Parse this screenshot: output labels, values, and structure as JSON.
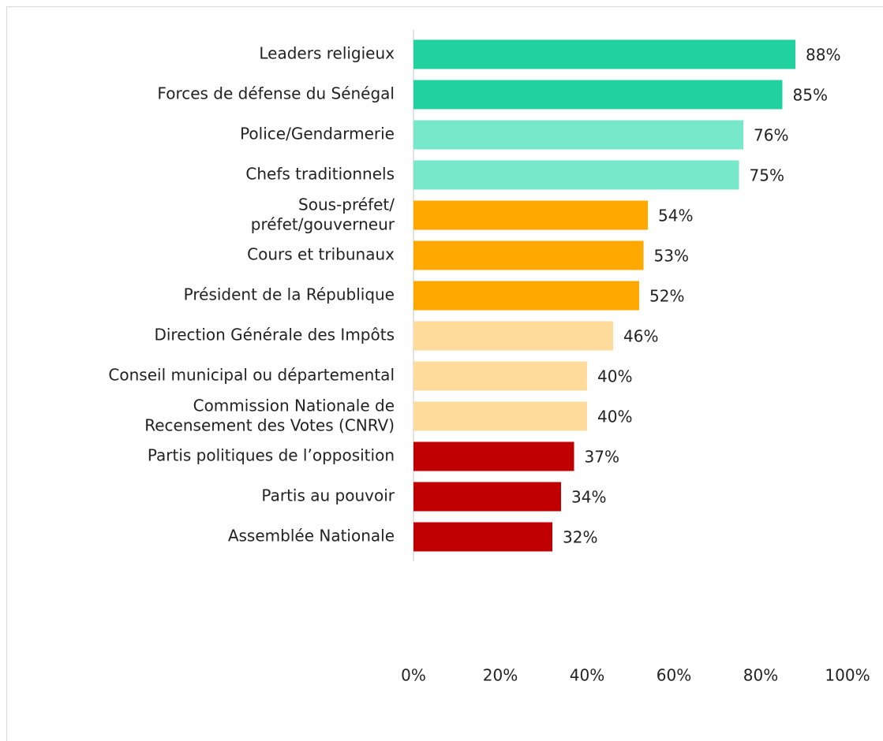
{
  "chart_data": {
    "type": "hbar",
    "categories": [
      "Leaders religieux",
      "Forces de défense du Sénégal",
      "Police/Gendarmerie",
      "Chefs traditionnels",
      "Sous-préfet/\npréfet/gouverneur",
      "Cours et tribunaux",
      "Président de la République",
      "Direction Générale des Impôts",
      "Conseil municipal ou départemental",
      "Commission Nationale de\nRecensement des Votes (CNRV)",
      "Partis politiques de l’opposition",
      "Partis au pouvoir",
      "Assemblée Nationale"
    ],
    "values": [
      88,
      85,
      76,
      75,
      54,
      53,
      52,
      46,
      40,
      40,
      37,
      34,
      32
    ],
    "value_labels": [
      "88%",
      "85%",
      "76%",
      "75%",
      "54%",
      "53%",
      "52%",
      "46%",
      "40%",
      "40%",
      "37%",
      "34%",
      "32%"
    ],
    "colors": [
      "#21d19f",
      "#21d19f",
      "#77e8c9",
      "#77e8c9",
      "#ffa800",
      "#ffa800",
      "#ffa800",
      "#ffdc9b",
      "#ffdc9b",
      "#ffdc9b",
      "#c00000",
      "#c00000",
      "#c00000"
    ],
    "xlim": [
      0,
      100
    ],
    "xticks": [
      {
        "value": 0,
        "label": "0%"
      },
      {
        "value": 20,
        "label": "20%"
      },
      {
        "value": 40,
        "label": "40%"
      },
      {
        "value": 60,
        "label": "60%"
      },
      {
        "value": 80,
        "label": "80%"
      },
      {
        "value": 100,
        "label": "100%"
      }
    ]
  }
}
